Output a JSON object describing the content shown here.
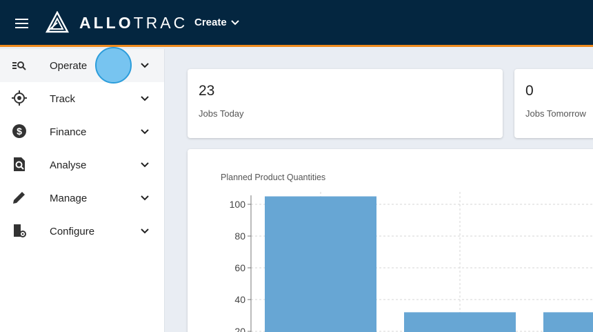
{
  "header": {
    "logo_text_bold": "ALLO",
    "logo_text_light": "TRAC",
    "create_label": "Create"
  },
  "sidebar": {
    "items": [
      {
        "label": "Operate",
        "icon": "operate-search-icon"
      },
      {
        "label": "Track",
        "icon": "crosshair-icon"
      },
      {
        "label": "Finance",
        "icon": "dollar-icon"
      },
      {
        "label": "Analyse",
        "icon": "document-search-icon"
      },
      {
        "label": "Manage",
        "icon": "pencil-icon"
      },
      {
        "label": "Configure",
        "icon": "building-gear-icon"
      }
    ]
  },
  "stats": [
    {
      "value": "23",
      "label": "Jobs Today"
    },
    {
      "value": "0",
      "label": "Jobs Tomorrow"
    }
  ],
  "colors": {
    "header": "#042640",
    "accent": "#f08a1c",
    "bar": "#67a6d4"
  },
  "chart_data": {
    "type": "bar",
    "title": "Planned Product Quantities",
    "values": [
      105,
      32,
      32
    ],
    "yticks": [
      20,
      40,
      60,
      80,
      100
    ],
    "ylim": [
      0,
      110
    ],
    "grid": true
  }
}
